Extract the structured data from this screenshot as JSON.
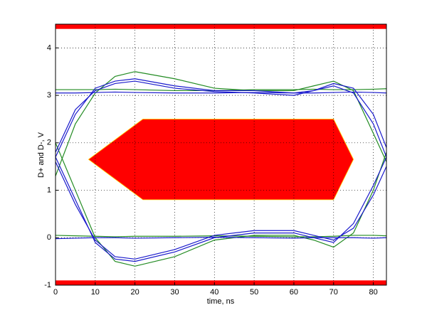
{
  "chart_data": {
    "type": "line",
    "x_label": "time, ns",
    "y_label": "D+ and D-, V",
    "xlim": [
      0,
      83.3
    ],
    "ylim": [
      -1,
      4.5
    ],
    "xticks": [
      0,
      10,
      20,
      30,
      40,
      50,
      60,
      70,
      80
    ],
    "yticks": [
      -1,
      0,
      1,
      2,
      3,
      4
    ],
    "grid": true,
    "mask": {
      "color": "#ff0000",
      "x": [
        8.3,
        22,
        70,
        75,
        70,
        22
      ],
      "y": [
        1.65,
        2.5,
        2.5,
        1.65,
        0.8,
        0.8
      ]
    },
    "bands": [
      [
        4.4,
        4.5
      ],
      [
        -1,
        -0.9
      ]
    ],
    "x": [
      0,
      5,
      10,
      15,
      20,
      30,
      40,
      50,
      60,
      65,
      70,
      75,
      80,
      83.3
    ],
    "series": [
      {
        "color": "#228b22",
        "values": [
          1.3,
          2.4,
          3.05,
          3.4,
          3.5,
          3.35,
          3.15,
          3.1,
          3.1,
          3.2,
          3.3,
          3.1,
          2.2,
          1.6
        ]
      },
      {
        "color": "#228b22",
        "values": [
          2.0,
          1.0,
          0.0,
          -0.5,
          -0.6,
          -0.4,
          -0.05,
          0.05,
          0.05,
          -0.05,
          -0.2,
          0.1,
          1.0,
          1.8
        ]
      },
      {
        "color": "#228b22",
        "values": [
          3.12,
          3.12,
          3.12,
          3.13,
          3.12,
          3.1,
          3.1,
          3.12,
          3.12,
          3.13,
          3.12,
          3.12,
          3.13,
          3.14
        ]
      },
      {
        "color": "#228b22",
        "values": [
          0.05,
          0.04,
          0.03,
          0.02,
          0.03,
          0.03,
          0.04,
          0.03,
          0.02,
          0.02,
          0.03,
          0.05,
          0.05,
          0.04
        ]
      },
      {
        "color": "#1a1acc",
        "values": [
          1.7,
          2.6,
          3.15,
          3.3,
          3.35,
          3.2,
          3.1,
          3.1,
          3.05,
          3.1,
          3.2,
          3.05,
          2.4,
          1.7
        ]
      },
      {
        "color": "#1a1acc",
        "values": [
          1.7,
          0.8,
          -0.1,
          -0.45,
          -0.5,
          -0.3,
          0.0,
          0.1,
          0.1,
          0.0,
          -0.1,
          0.3,
          1.1,
          1.7
        ]
      },
      {
        "color": "#1a1acc",
        "values": [
          1.8,
          2.7,
          3.1,
          3.25,
          3.3,
          3.15,
          3.08,
          3.05,
          3.0,
          3.1,
          3.25,
          3.15,
          2.6,
          1.9
        ]
      },
      {
        "color": "#1a1acc",
        "values": [
          1.6,
          0.7,
          -0.05,
          -0.4,
          -0.45,
          -0.25,
          0.05,
          0.15,
          0.15,
          0.05,
          -0.05,
          0.2,
          0.9,
          1.5
        ]
      },
      {
        "color": "#1a1acc",
        "values": [
          3.05,
          3.05,
          3.06,
          3.07,
          3.06,
          3.05,
          3.05,
          3.06,
          3.05,
          3.05,
          3.06,
          3.07,
          3.06,
          3.05
        ]
      },
      {
        "color": "#1a1acc",
        "values": [
          -0.02,
          -0.01,
          0.0,
          0.0,
          -0.01,
          0.0,
          0.01,
          0.0,
          -0.01,
          0.0,
          0.0,
          0.0,
          -0.01,
          0.0
        ]
      }
    ]
  }
}
